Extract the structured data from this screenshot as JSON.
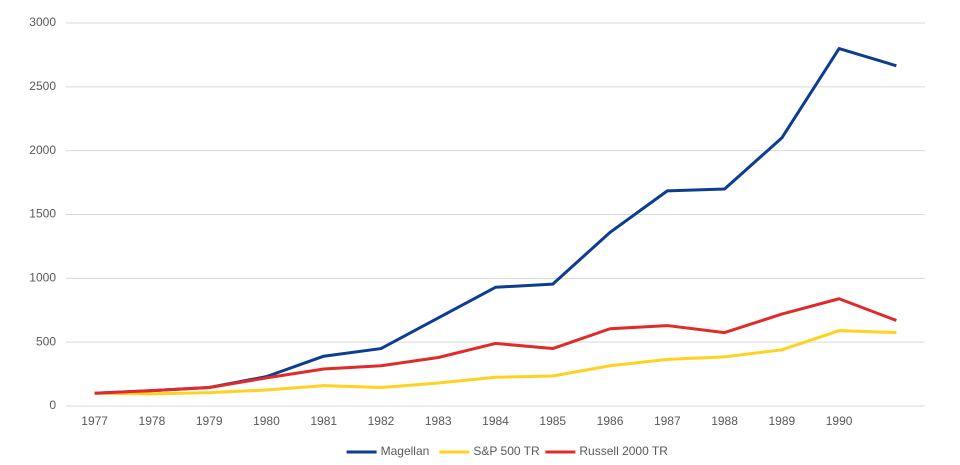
{
  "chart_data": {
    "type": "line",
    "categories": [
      "1977",
      "1978",
      "1979",
      "1980",
      "1981",
      "1982",
      "1983",
      "1984",
      "1985",
      "1986",
      "1987",
      "1988",
      "1989",
      "1990",
      null
    ],
    "series": [
      {
        "name": "Magellan",
        "color": "#0d3d91",
        "values": [
          100,
          120,
          145,
          230,
          390,
          450,
          690,
          930,
          955,
          1360,
          1685,
          1700,
          2100,
          2800,
          2665
        ]
      },
      {
        "name": "S&P 500 TR",
        "color": "#ffd21f",
        "values": [
          100,
          95,
          105,
          125,
          160,
          145,
          180,
          225,
          235,
          315,
          365,
          385,
          440,
          590,
          575
        ]
      },
      {
        "name": "Russell 2000 TR",
        "color": "#e02b2b",
        "values": [
          100,
          120,
          145,
          220,
          290,
          315,
          380,
          490,
          450,
          605,
          630,
          575,
          720,
          840,
          670
        ]
      }
    ],
    "ylim": [
      0,
      3000
    ],
    "yticks": [
      0,
      500,
      1000,
      1500,
      2000,
      2500,
      3000
    ],
    "grid": true,
    "legend": "bottom"
  }
}
